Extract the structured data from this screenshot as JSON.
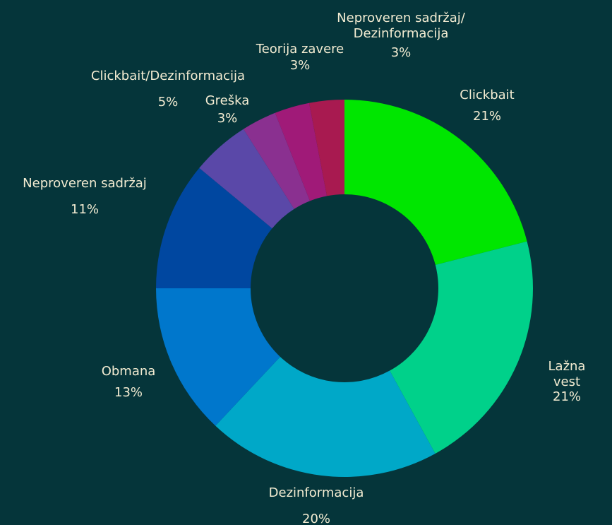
{
  "chart_data": {
    "type": "donut",
    "categories": [
      "Clickbait",
      "Lažna vest",
      "Dezinformacija",
      "Obmana",
      "Neproveren sadržaj",
      "Clickbait/Dezinformacija",
      "Greška",
      "Teorija zavere",
      "Neproveren sadržaj/\nDezinformacija"
    ],
    "values": [
      21,
      21,
      20,
      13,
      11,
      5,
      3,
      3,
      3
    ],
    "value_labels": [
      "21%",
      "21%",
      "20%",
      "13%",
      "11%",
      "5%",
      "3%",
      "3%",
      "3%"
    ],
    "colors": [
      "#00e600",
      "#00d18a",
      "#00a8c8",
      "#0077cc",
      "#0047a0",
      "#5a48a8",
      "#8a3090",
      "#a01a78",
      "#a81a50"
    ]
  }
}
